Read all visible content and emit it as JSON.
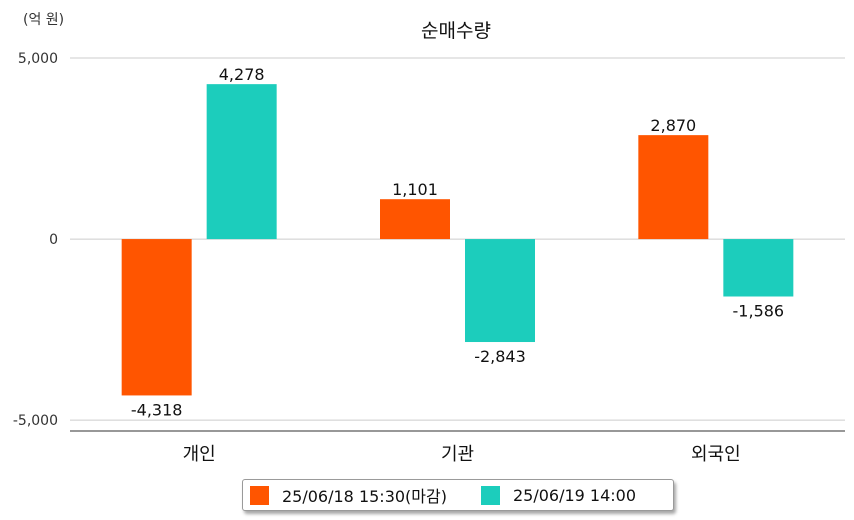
{
  "chart_data": {
    "type": "bar",
    "title": "순매수량",
    "unit_label": "(억 원)",
    "categories": [
      "개인",
      "기관",
      "외국인"
    ],
    "series": [
      {
        "name": "25/06/18 15:30(마감)",
        "color": "#ff5500",
        "values": [
          -4318,
          1101,
          2870
        ],
        "labels": [
          "-4,318",
          "1,101",
          "2,870"
        ]
      },
      {
        "name": "25/06/19 14:00",
        "color": "#1ccdbc",
        "values": [
          4278,
          -2843,
          -1586
        ],
        "labels": [
          "4,278",
          "-2,843",
          "-1,586"
        ]
      }
    ],
    "ylim": [
      -5300,
      5000
    ],
    "yticks": [
      5000,
      0,
      -5000
    ],
    "ytick_labels": [
      "5,000",
      "0",
      "-5,000"
    ],
    "grid": true,
    "legend_position": "bottom"
  }
}
